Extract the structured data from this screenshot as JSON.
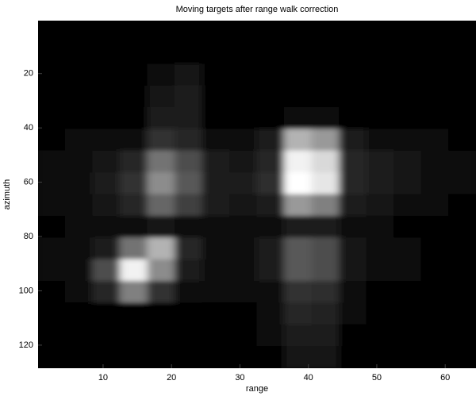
{
  "chart_data": {
    "type": "heatmap",
    "title": "Moving targets after range walk correction",
    "x_label": "range",
    "y_label": "azimuth",
    "colormap": "gray",
    "zlim": [
      0,
      1
    ],
    "xlim": [
      0.5,
      64.5
    ],
    "xticks": [
      10,
      20,
      30,
      40,
      50,
      60
    ],
    "ylim": [
      128.5,
      0.5
    ],
    "yticks": [
      20,
      40,
      60,
      80,
      100,
      120
    ],
    "x": [
      2.5,
      6.5,
      10.5,
      14.5,
      18.5,
      22.5,
      26.5,
      30.5,
      34.5,
      38.5,
      42.5,
      46.5,
      50.5,
      54.5,
      58.5,
      62.5
    ],
    "y": [
      4.5,
      12.5,
      20.5,
      28.5,
      36.5,
      44.5,
      52.5,
      60.5,
      68.5,
      76.5,
      84.5,
      92.5,
      100.5,
      108.5,
      116.5,
      124.5
    ],
    "z": [
      [
        0,
        0,
        0,
        0,
        0,
        0,
        0,
        0,
        0,
        0,
        0,
        0,
        0,
        0,
        0,
        0
      ],
      [
        0,
        0,
        0,
        0,
        0,
        0,
        0,
        0,
        0,
        0,
        0,
        0,
        0,
        0,
        0,
        0
      ],
      [
        0,
        0,
        0,
        0,
        0.04,
        0.08,
        0,
        0,
        0,
        0,
        0,
        0,
        0,
        0,
        0,
        0
      ],
      [
        0,
        0,
        0,
        0,
        0.08,
        0.12,
        0,
        0,
        0,
        0,
        0,
        0,
        0,
        0,
        0,
        0
      ],
      [
        0,
        0,
        0,
        0,
        0.12,
        0.12,
        0,
        0,
        0,
        0.03,
        0.03,
        0,
        0,
        0,
        0,
        0
      ],
      [
        0.02,
        0.03,
        0.04,
        0.06,
        0.2,
        0.15,
        0.06,
        0.05,
        0.1,
        0.7,
        0.6,
        0.1,
        0.06,
        0.05,
        0.04,
        0.02
      ],
      [
        0.04,
        0.06,
        0.08,
        0.15,
        0.45,
        0.3,
        0.1,
        0.08,
        0.15,
        0.95,
        0.85,
        0.15,
        0.1,
        0.08,
        0.06,
        0.03
      ],
      [
        0.04,
        0.06,
        0.1,
        0.2,
        0.55,
        0.35,
        0.12,
        0.1,
        0.18,
        1,
        0.9,
        0.15,
        0.1,
        0.08,
        0.06,
        0.03
      ],
      [
        0.03,
        0.05,
        0.08,
        0.15,
        0.4,
        0.25,
        0.1,
        0.08,
        0.12,
        0.6,
        0.5,
        0.12,
        0.08,
        0.06,
        0.05,
        0.02
      ],
      [
        0.02,
        0.03,
        0.05,
        0.06,
        0.08,
        0.06,
        0.04,
        0.03,
        0.04,
        0.1,
        0.1,
        0.04,
        0.03,
        0.02,
        0.02,
        0.01
      ],
      [
        0.03,
        0.05,
        0.12,
        0.45,
        0.7,
        0.15,
        0.06,
        0.05,
        0.1,
        0.35,
        0.3,
        0.08,
        0.04,
        0.03,
        0.02,
        0.01
      ],
      [
        0.04,
        0.06,
        0.3,
        0.95,
        0.55,
        0.12,
        0.06,
        0.05,
        0.12,
        0.35,
        0.3,
        0.08,
        0.05,
        0.03,
        0.02,
        0.01
      ],
      [
        0.02,
        0.03,
        0.15,
        0.5,
        0.2,
        0.05,
        0.03,
        0.03,
        0.06,
        0.2,
        0.18,
        0.04,
        0.02,
        0.01,
        0.01,
        0
      ],
      [
        0,
        0,
        0.01,
        0.02,
        0.02,
        0.01,
        0,
        0,
        0.04,
        0.15,
        0.13,
        0.03,
        0,
        0,
        0,
        0
      ],
      [
        0,
        0,
        0,
        0,
        0,
        0,
        0,
        0,
        0.03,
        0.12,
        0.12,
        0.02,
        0,
        0,
        0,
        0
      ],
      [
        0,
        0,
        0,
        0,
        0,
        0,
        0,
        0,
        0.02,
        0.08,
        0.08,
        0,
        0,
        0,
        0,
        0
      ]
    ]
  }
}
